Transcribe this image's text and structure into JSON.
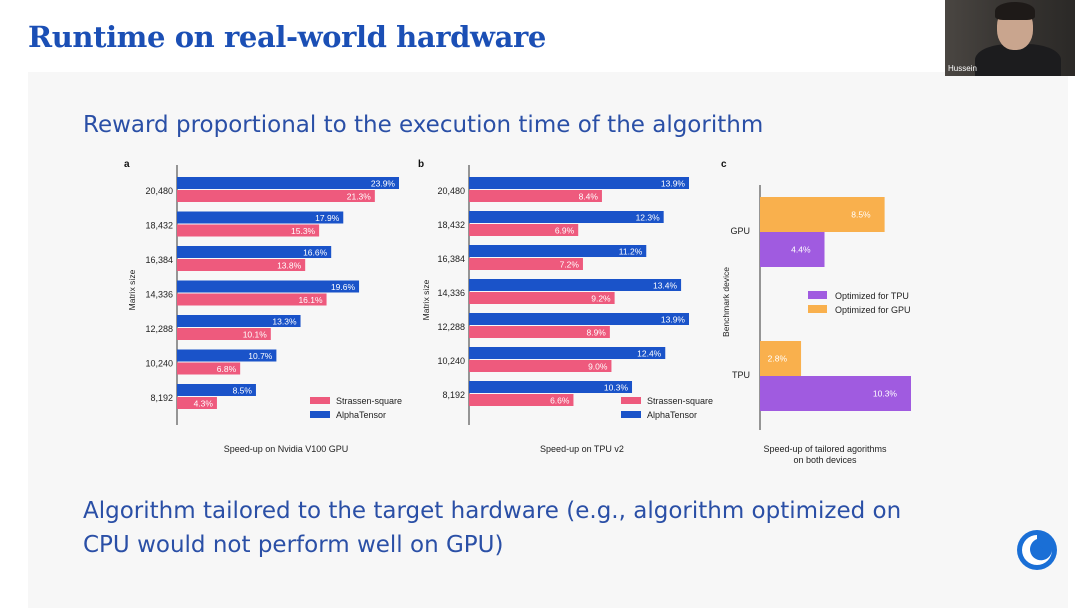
{
  "slide": {
    "title": "Runtime on real-world hardware",
    "subtitle": "Reward proportional to the execution time of the algorithm",
    "bottom_line1": "Algorithm tailored to the target hardware (e.g., algorithm optimized on",
    "bottom_line2": "CPU would not perform well on GPU)"
  },
  "webcam": {
    "name": "Hussein"
  },
  "colors": {
    "title": "#1b4fb5",
    "alphatensor": "#1a53c9",
    "strassen": "#ee5a7d",
    "tpu_opt": "#a05be0",
    "gpu_opt": "#f9b04d"
  },
  "chart_data": [
    {
      "type": "bar",
      "panel": "a",
      "orientation": "horizontal",
      "xlabel": "Speed-up on Nvidia V100 GPU",
      "ylabel": "Matrix size",
      "categories": [
        "20,480",
        "18,432",
        "16,384",
        "14,336",
        "12,288",
        "10,240",
        "8,192"
      ],
      "series": [
        {
          "name": "AlphaTensor",
          "values": [
            23.9,
            17.9,
            16.6,
            19.6,
            13.3,
            10.7,
            8.5
          ]
        },
        {
          "name": "Strassen-square",
          "values": [
            21.3,
            15.3,
            13.8,
            16.1,
            10.1,
            6.8,
            4.3
          ]
        }
      ],
      "legend": [
        "Strassen-square",
        "AlphaTensor"
      ],
      "legend_position": "bottom-right",
      "unit": "%",
      "xlim": [
        0,
        25
      ]
    },
    {
      "type": "bar",
      "panel": "b",
      "orientation": "horizontal",
      "xlabel": "Speed-up on TPU v2",
      "ylabel": "Matrix size",
      "categories": [
        "20,480",
        "18,432",
        "16,384",
        "14,336",
        "12,288",
        "10,240",
        "8,192"
      ],
      "series": [
        {
          "name": "AlphaTensor",
          "values": [
            13.9,
            12.3,
            11.2,
            13.4,
            13.9,
            12.4,
            10.3
          ]
        },
        {
          "name": "Strassen-square",
          "values": [
            8.4,
            6.9,
            7.2,
            9.2,
            8.9,
            9.0,
            6.6
          ]
        }
      ],
      "legend": [
        "Strassen-square",
        "AlphaTensor"
      ],
      "legend_position": "bottom-right",
      "unit": "%",
      "xlim": [
        0,
        15
      ]
    },
    {
      "type": "bar",
      "panel": "c",
      "orientation": "horizontal",
      "xlabel": "Speed-up of tailored agorithms on both devices",
      "xlabel_line1": "Speed-up of tailored agorithms",
      "xlabel_line2": "on both devices",
      "ylabel": "Benchmark device",
      "categories": [
        "GPU",
        "TPU"
      ],
      "series": [
        {
          "name": "Optimized for GPU",
          "values": [
            8.5,
            2.8
          ]
        },
        {
          "name": "Optimized for TPU",
          "values": [
            4.4,
            10.3
          ]
        }
      ],
      "legend": [
        "Optimized for TPU",
        "Optimized for GPU"
      ],
      "legend_position": "center-right",
      "unit": "%",
      "xlim": [
        0,
        10.3
      ]
    }
  ]
}
